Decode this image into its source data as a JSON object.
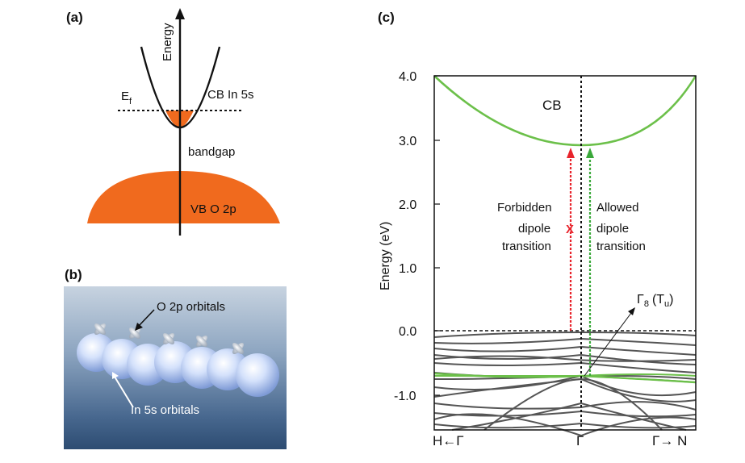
{
  "panel_a": {
    "letter": "(a)",
    "y_axis_label": "Energy",
    "fermi_label": "E",
    "fermi_sub": "f",
    "cb_label": "CB In 5s",
    "gap_label": "bandgap",
    "vb_label": "VB O 2p",
    "fill_color": "#f06a1e"
  },
  "panel_b": {
    "letter": "(b)",
    "o2p_label": "O 2p orbitals",
    "in5s_label": "In 5s orbitals"
  },
  "panel_c": {
    "letter": "(c)",
    "y_axis_label": "Energy (eV)",
    "y_ticks": [
      "4.0",
      "3.0",
      "2.0",
      "1.0",
      "0.0",
      "-1.0"
    ],
    "x_ticks": [
      "H←Γ",
      "Γ",
      "Γ→ N"
    ],
    "cb_label": "CB",
    "forbidden_line1": "Forbidden",
    "forbidden_line2": "dipole",
    "forbidden_line3": "transition",
    "allowed_line1": "Allowed",
    "allowed_line2": "dipole",
    "allowed_line3": "transition",
    "gamma_label": "Γ",
    "gamma_sub": "8",
    "tu_label": "(T",
    "tu_sub": "u",
    "tu_close": ")",
    "cross_mark": "X",
    "band_green": "#6cc04a",
    "band_gray": "#555555",
    "forbidden_color": "#e8242c",
    "allowed_color": "#3aa83a"
  }
}
